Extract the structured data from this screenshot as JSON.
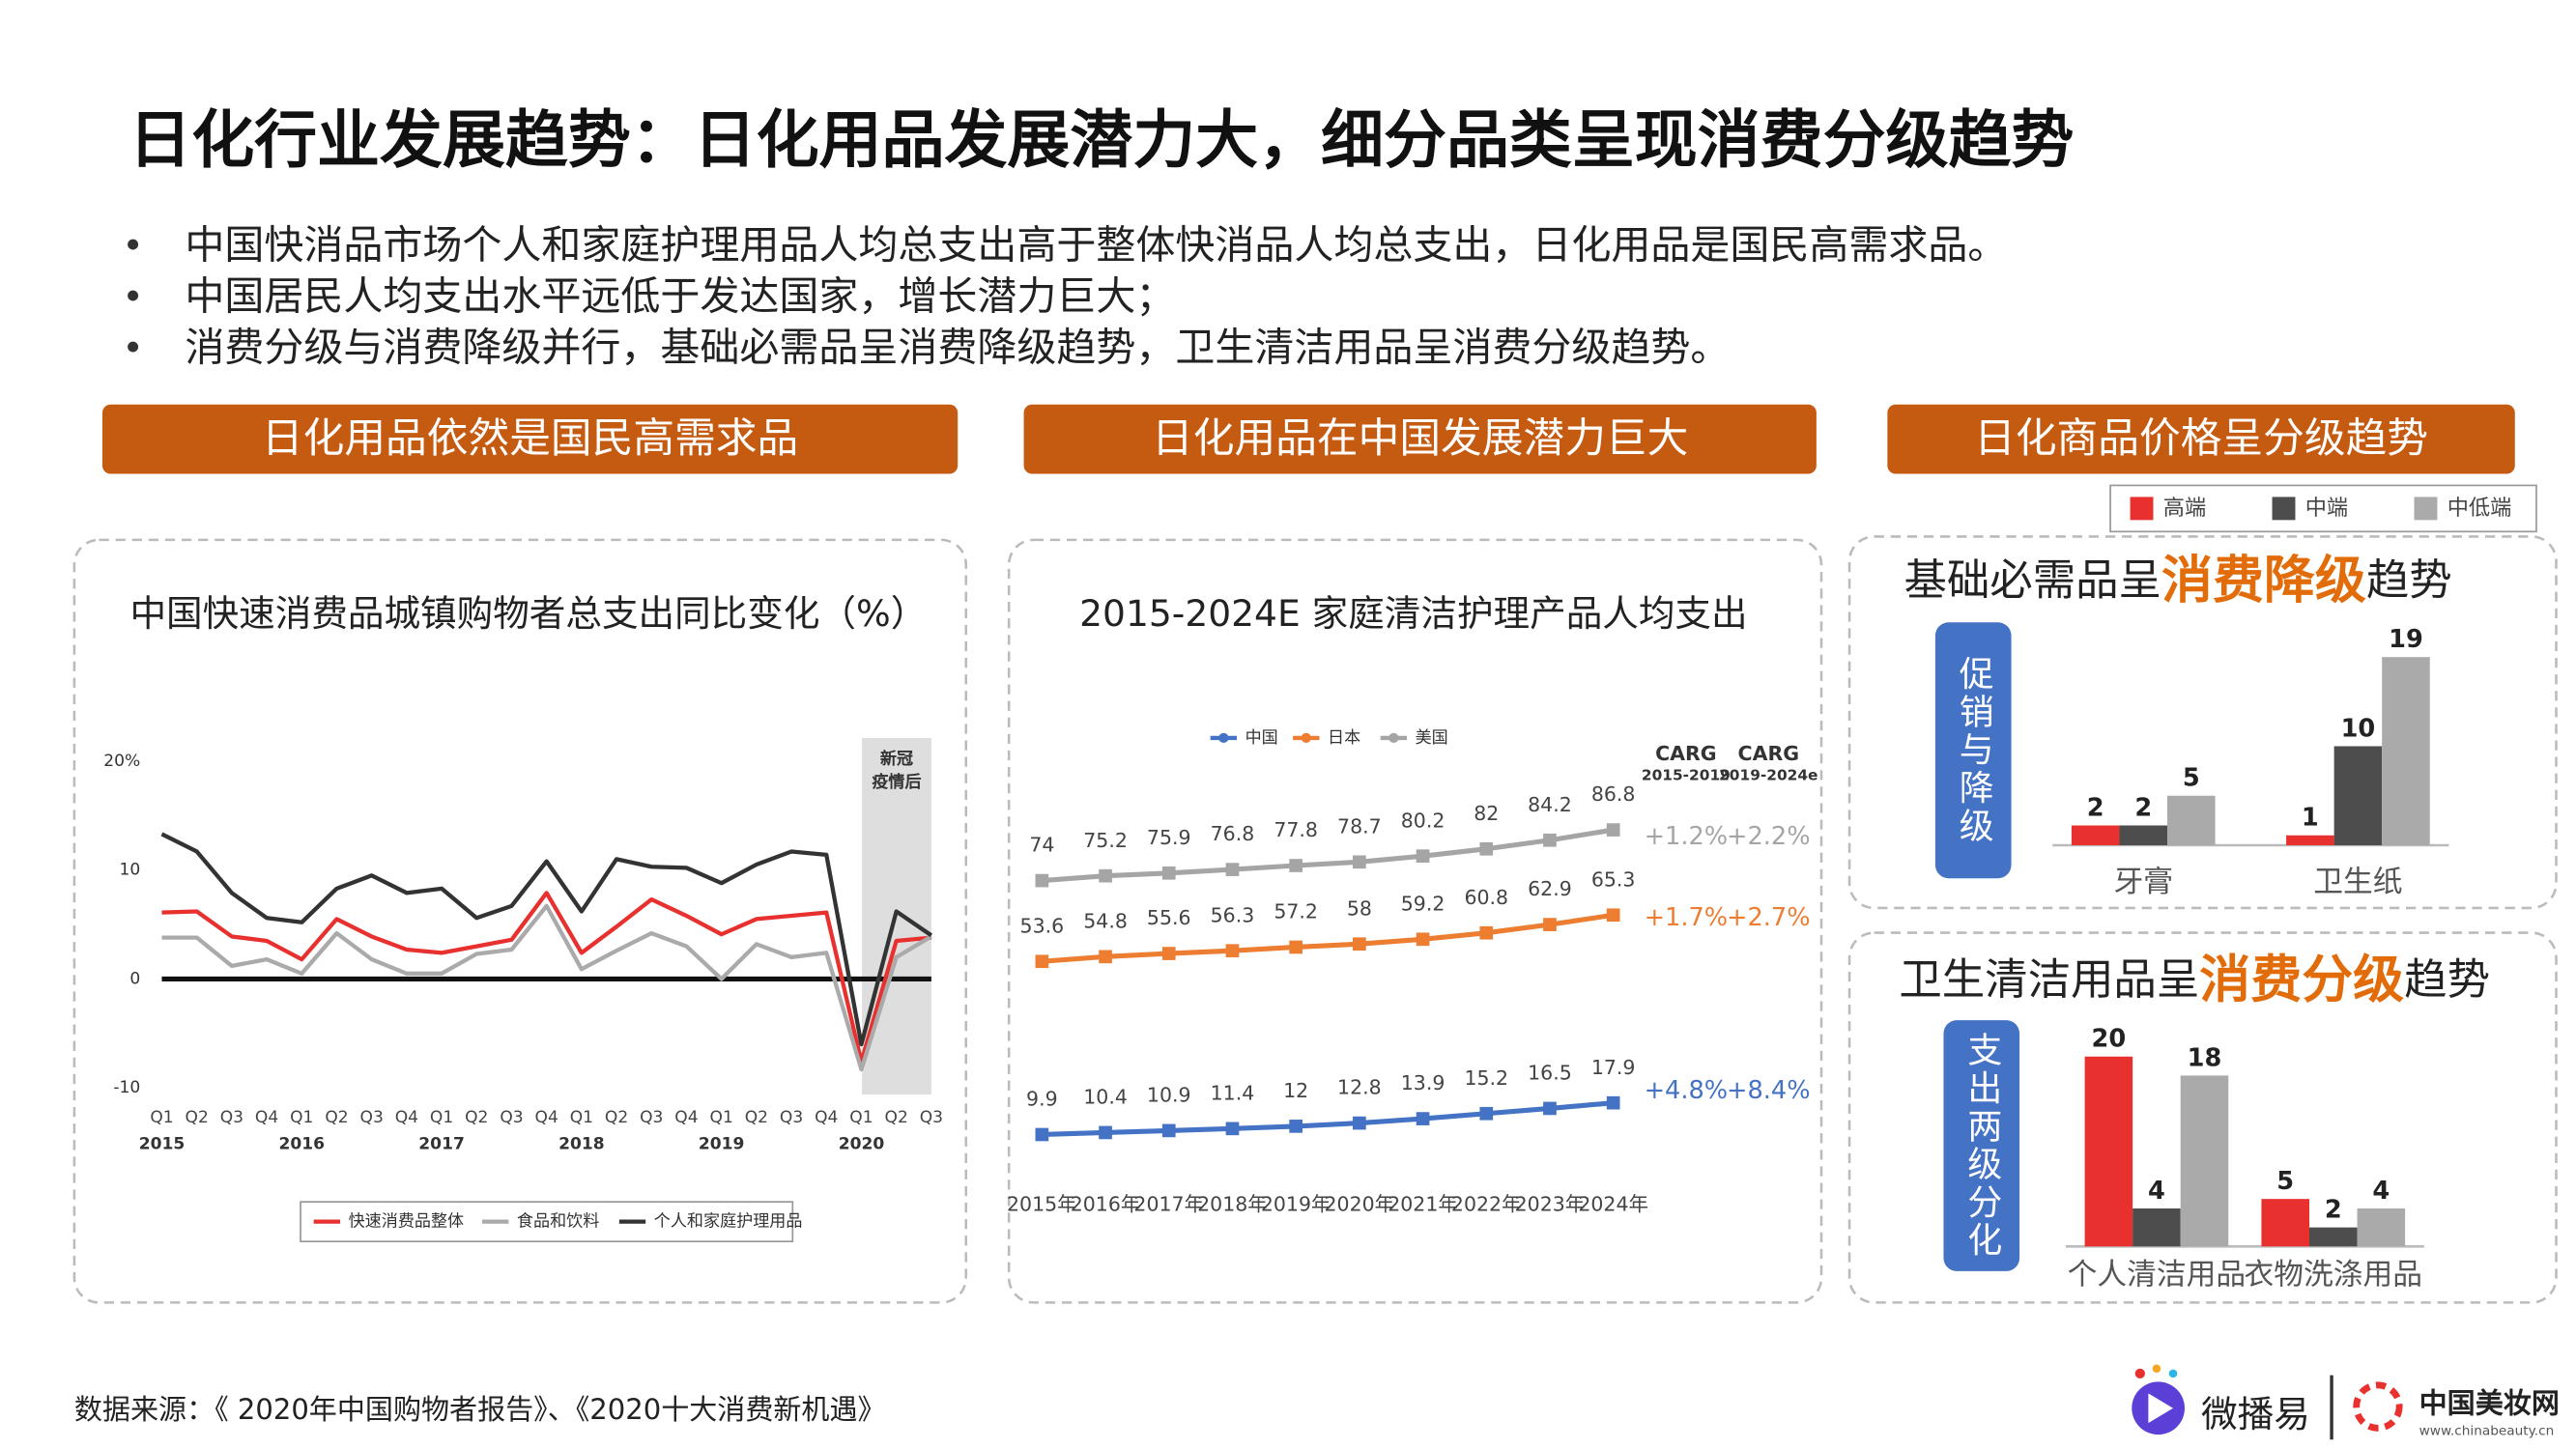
{
  "title": "日化行业发展趋势：日化用品发展潜力大，细分品类呈现消费分级趋势",
  "bullets": [
    "中国快消品市场个人和家庭护理用品人均总支出高于整体快消品人均总支出，日化用品是国民高需求品。",
    "中国居民人均支出水平远低于发达国家，增长潜力巨大；",
    "消费分级与消费降级并行，基础必需品呈消费降级趋势，卫生清洁用品呈消费分级趋势。"
  ],
  "section_headers": [
    "日化用品依然是国民高需求品",
    "日化用品在中国发展潜力巨大",
    "日化商品价格呈分级趋势"
  ],
  "source": "数据来源：《 2020年中国购物者报告》、《2020十大消费新机遇》",
  "logos": {
    "brand": "微播易",
    "partner": "中国美妆网",
    "partner_url": "www.chinabeauty.cn"
  },
  "chart_data": [
    {
      "type": "line",
      "title": "中国快速消费品城镇购物者总支出同比变化（%）",
      "categories": [
        "Q1",
        "Q2",
        "Q3",
        "Q4",
        "Q1",
        "Q2",
        "Q3",
        "Q4",
        "Q1",
        "Q2",
        "Q3",
        "Q4",
        "Q1",
        "Q2",
        "Q3",
        "Q4",
        "Q1",
        "Q2",
        "Q3",
        "Q4",
        "Q1",
        "Q2",
        "Q3"
      ],
      "years": [
        "2015",
        "2016",
        "2017",
        "2018",
        "2019",
        "2020"
      ],
      "annotation_lines": [
        "新冠",
        "疫情后"
      ],
      "ylim": [
        -11,
        22
      ],
      "yticks": [
        {
          "value": 20,
          "label": "20%"
        },
        10,
        0,
        -10
      ],
      "series": [
        {
          "name": "快速消费品整体",
          "color": "#e8312f",
          "values": [
            6.1,
            6.2,
            3.9,
            3.5,
            1.8,
            5.5,
            3.9,
            2.7,
            2.4,
            3,
            3.6,
            7.9,
            2.4,
            4.8,
            7.3,
            5.8,
            4.1,
            5.5,
            5.8,
            6.1,
            -7.6,
            3.5,
            3.8
          ]
        },
        {
          "name": "食品和饮料",
          "color": "#aaaaaa",
          "values": [
            3.8,
            3.8,
            1.2,
            1.8,
            0.5,
            4.2,
            1.8,
            0.5,
            0.5,
            2.3,
            2.7,
            6.7,
            0.9,
            2.6,
            4.2,
            3,
            0,
            3.2,
            2,
            2.4,
            -8.3,
            2,
            3.9
          ]
        },
        {
          "name": "个人和家庭护理用品",
          "color": "#333333",
          "values": [
            13.3,
            11.7,
            7.9,
            5.6,
            5.2,
            8.3,
            9.5,
            7.9,
            8.3,
            5.6,
            6.7,
            10.8,
            6.2,
            11,
            10.3,
            10.2,
            8.8,
            10.5,
            11.7,
            11.4,
            -6,
            6.2,
            4
          ]
        }
      ]
    },
    {
      "type": "line",
      "title": "2015-2024E 家庭清洁护理产品人均支出",
      "categories": [
        "2015年",
        "2016年",
        "2017年",
        "2018年",
        "2019年",
        "2020年",
        "2021年",
        "2022年",
        "2023年",
        "2024年"
      ],
      "ylim": [
        0,
        100
      ],
      "cagr_headers": [
        {
          "title": "CARG",
          "period": "2015-2019"
        },
        {
          "title": "CARG",
          "period": "2019-2024e"
        }
      ],
      "series": [
        {
          "name": "中国",
          "color": "#4472c4",
          "values": [
            9.9,
            10.4,
            10.9,
            11.4,
            12,
            12.8,
            13.9,
            15.2,
            16.5,
            17.9
          ],
          "cagr_labels": [
            "+4.8%",
            "+8.4%"
          ]
        },
        {
          "name": "日本",
          "color": "#ed7d31",
          "values": [
            53.6,
            54.8,
            55.6,
            56.3,
            57.2,
            58,
            59.2,
            60.8,
            62.9,
            65.3
          ],
          "cagr_labels": [
            "+1.7%",
            "+2.7%"
          ]
        },
        {
          "name": "美国",
          "color": "#a5a5a5",
          "values": [
            74,
            75.2,
            75.9,
            76.8,
            77.8,
            78.7,
            80.2,
            82,
            84.2,
            86.8
          ],
          "cagr_labels": [
            "+1.2%",
            "+2.2%"
          ]
        }
      ]
    },
    {
      "type": "bar",
      "title_parts": [
        "基础必需品呈",
        "消费降级",
        "趋势"
      ],
      "side_label": "促销与降级",
      "categories": [
        "牙膏",
        "卫生纸"
      ],
      "ylim": [
        0,
        20
      ],
      "series": [
        {
          "name": "高端",
          "color": "#e8312f",
          "values": [
            2,
            1
          ]
        },
        {
          "name": "中端",
          "color": "#4d4d4d",
          "values": [
            2,
            10
          ]
        },
        {
          "name": "中低端",
          "color": "#aaaaaa",
          "values": [
            5,
            19
          ]
        }
      ]
    },
    {
      "type": "bar",
      "title_parts": [
        "卫生清洁用品呈",
        "消费分级",
        "趋势"
      ],
      "side_label": "支出两级分化",
      "categories": [
        "个人清洁用品",
        "衣物洗涤用品"
      ],
      "ylim": [
        0,
        20
      ],
      "series": [
        {
          "color": "#e8312f",
          "values": [
            20,
            5
          ]
        },
        {
          "color": "#4d4d4d",
          "values": [
            4,
            2
          ]
        },
        {
          "color": "#aaaaaa",
          "values": [
            18,
            4
          ]
        }
      ]
    }
  ]
}
